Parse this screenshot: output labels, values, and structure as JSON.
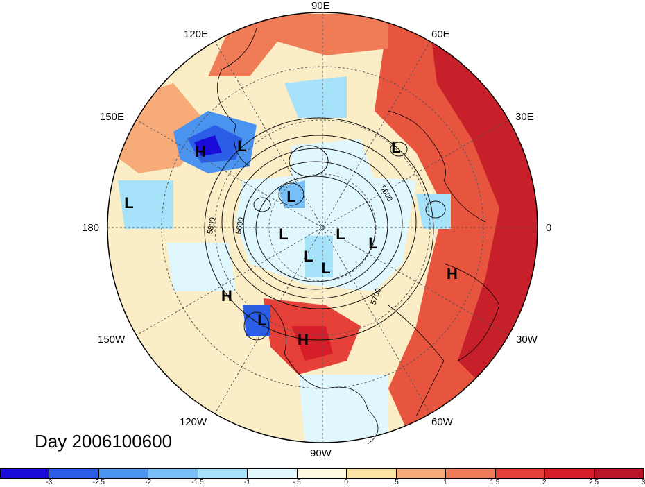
{
  "title": "Day 2006100600",
  "longitude_labels": [
    "90E",
    "60E",
    "30E",
    "0",
    "30W",
    "60W",
    "90W",
    "120W",
    "150W",
    "180",
    "150E",
    "120E"
  ],
  "colorbar": {
    "colors": [
      "#1b0bd8",
      "#2b5ee6",
      "#4a94f0",
      "#78c0f7",
      "#a6e3fb",
      "#dff7fd",
      "#fffbe0",
      "#fbe4a6",
      "#f6ab79",
      "#ef7b57",
      "#e64139",
      "#d61e2b",
      "#b8142a"
    ],
    "tick_labels": [
      "-3",
      "-2.5",
      "-2",
      "-1.5",
      "-1",
      "-.5",
      "0",
      ".5",
      "1",
      "1.5",
      "2",
      "2.5",
      "3"
    ]
  },
  "pressure_centers": [
    "H",
    "L",
    "L",
    "L",
    "L",
    "L",
    "L",
    "L",
    "L",
    "L",
    "H",
    "H",
    "L",
    "H"
  ],
  "contour_labels": [
    "5600",
    "5800",
    "5600",
    "5700"
  ]
}
